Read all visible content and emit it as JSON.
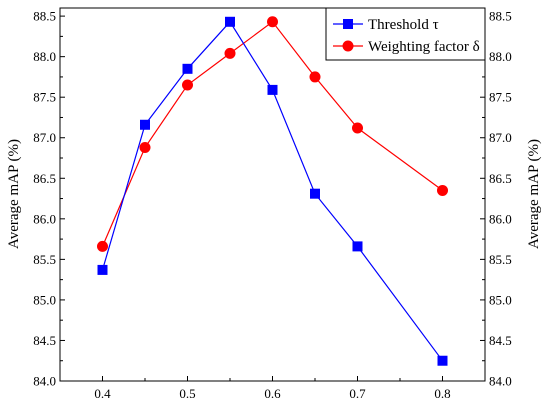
{
  "chart_data": {
    "type": "line",
    "x": [
      0.4,
      0.45,
      0.5,
      0.55,
      0.6,
      0.65,
      0.7,
      0.8
    ],
    "xlim": [
      0.35,
      0.85
    ],
    "xticks": [
      "0.4",
      "0.5",
      "0.6",
      "0.7",
      "0.8"
    ],
    "xtick_values": [
      0.4,
      0.5,
      0.6,
      0.7,
      0.8
    ],
    "ylim": [
      84.0,
      88.6
    ],
    "yticks": [
      "84.0",
      "84.5",
      "85.0",
      "85.5",
      "86.0",
      "86.5",
      "87.0",
      "87.5",
      "88.0",
      "88.5"
    ],
    "ytick_values": [
      84.0,
      84.5,
      85.0,
      85.5,
      86.0,
      86.5,
      87.0,
      87.5,
      88.0,
      88.5
    ],
    "ylabel_left": "Average mAP (%)",
    "ylabel_right": "Average mAP (%)",
    "legend_position": "top-right",
    "series": [
      {
        "name": "Threshold τ",
        "marker": "square",
        "color": "#0000ff",
        "x": [
          0.4,
          0.45,
          0.5,
          0.55,
          0.6,
          0.65,
          0.7,
          0.8
        ],
        "values": [
          85.37,
          87.16,
          87.85,
          88.43,
          87.59,
          86.31,
          85.66,
          84.25
        ]
      },
      {
        "name": "Weighting factor δ",
        "marker": "circle",
        "color": "#ff0000",
        "x": [
          0.4,
          0.45,
          0.5,
          0.55,
          0.6,
          0.65,
          0.7,
          0.8
        ],
        "values": [
          85.66,
          86.88,
          87.65,
          88.04,
          88.43,
          87.75,
          87.12,
          86.35
        ]
      }
    ]
  }
}
